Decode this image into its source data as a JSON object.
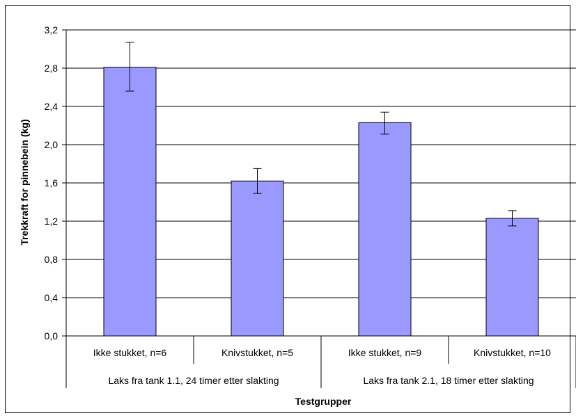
{
  "chart_data": {
    "type": "bar",
    "title": "",
    "xlabel": "Testgrupper",
    "ylabel": "Trekkraft  for pinnebein (kg)",
    "ylim": [
      0,
      3.2
    ],
    "yticks": [
      "0,0",
      "0,4",
      "0,8",
      "1,2",
      "1,6",
      "2,0",
      "2,4",
      "2,8",
      "3,2"
    ],
    "ytick_values": [
      0,
      0.4,
      0.8,
      1.2,
      1.6,
      2.0,
      2.4,
      2.8,
      3.2
    ],
    "grid": true,
    "bar_color": "#9999ff",
    "categories": [
      "Ikke stukket, n=6",
      "Knivstukket, n=5",
      "Ikke stukket, n=9",
      "Knivstukket, n=10"
    ],
    "groups": [
      "Laks fra tank 1.1, 24 timer etter slakting",
      "Laks fra tank 2.1, 18 timer etter slakting"
    ],
    "values": [
      2.81,
      1.62,
      2.23,
      1.23
    ],
    "error_low": [
      2.56,
      1.49,
      2.11,
      1.15
    ],
    "error_high": [
      3.07,
      1.75,
      2.34,
      1.31
    ]
  }
}
